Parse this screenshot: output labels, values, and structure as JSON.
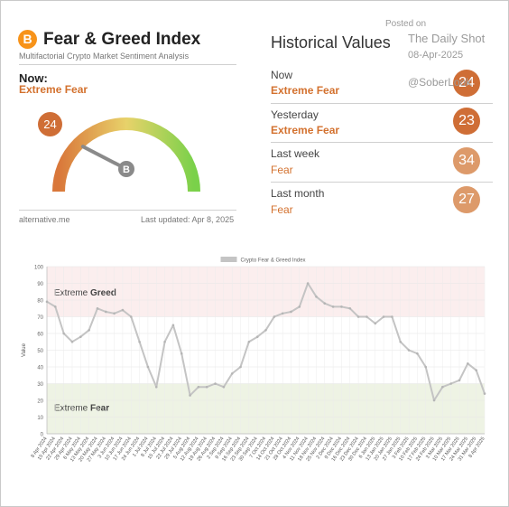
{
  "widget": {
    "logo_symbol": "B",
    "title": "Fear & Greed Index",
    "subtitle": "Multifactorial Crypto Market Sentiment Analysis",
    "now_label": "Now:",
    "now_classification": "Extreme Fear",
    "now_value": "24",
    "gauge_level_percent": 24,
    "source": "alternative.me",
    "last_updated": "Last updated: Apr 8, 2025"
  },
  "historical": {
    "title": "Historical Values",
    "items": [
      {
        "label": "Now",
        "classification": "Extreme Fear",
        "value": "24",
        "color": "#cf6e36"
      },
      {
        "label": "Yesterday",
        "classification": "Extreme Fear",
        "value": "23",
        "color": "#cf6e36"
      },
      {
        "label": "Last week",
        "classification": "Fear",
        "value": "34",
        "color": "#dd9a6a"
      },
      {
        "label": "Last month",
        "classification": "Fear",
        "value": "27",
        "color": "#dd9a6a"
      }
    ]
  },
  "watermark": {
    "posted_on": "Posted on",
    "publisher": "The Daily Shot",
    "date": "08-Apr-2025",
    "handle": "@SoberLook"
  },
  "colors": {
    "fear_orange": "#d3712e",
    "line": "#c4c4c4",
    "greed_band": "#fbeeee",
    "fear_band": "#eef3e4"
  },
  "chart_data": {
    "type": "line",
    "title": "",
    "legend": "Crypto Fear & Greed Index",
    "legend_position": "top-center",
    "ylabel": "Value",
    "xlabel": "",
    "ylim": [
      0,
      100
    ],
    "yticks": [
      0,
      10,
      20,
      30,
      40,
      50,
      60,
      70,
      80,
      90,
      100
    ],
    "grid": true,
    "bands": [
      {
        "label_prefix": "Extreme",
        "label_bold": "Greed",
        "from": 70,
        "to": 100
      },
      {
        "label_prefix": "Extreme",
        "label_bold": "Fear",
        "from": 0,
        "to": 30
      }
    ],
    "x_tick_labels": [
      "8 Apr 2024",
      "15 Apr 2024",
      "22 Apr 2024",
      "29 Apr 2024",
      "6 May 2024",
      "13 May 2024",
      "20 May 2024",
      "27 May 2024",
      "3 Jun 2024",
      "10 Jun 2024",
      "17 Jun 2024",
      "24 Jun 2024",
      "1 Jul 2024",
      "8 Jul 2024",
      "15 Jul 2024",
      "22 Jul 2024",
      "29 Jul 2024",
      "5 Aug 2024",
      "12 Aug 2024",
      "19 Aug 2024",
      "26 Aug 2024",
      "2 Sep 2024",
      "9 Sep 2024",
      "16 Sep 2024",
      "23 Sep 2024",
      "30 Sep 2024",
      "7 Oct 2024",
      "14 Oct 2024",
      "21 Oct 2024",
      "28 Oct 2024",
      "4 Nov 2024",
      "11 Nov 2024",
      "18 Nov 2024",
      "25 Nov 2024",
      "2 Dec 2024",
      "9 Dec 2024",
      "16 Dec 2024",
      "23 Dec 2024",
      "30 Dec 2024",
      "6 Jan 2025",
      "13 Jan 2025",
      "20 Jan 2025",
      "27 Jan 2025",
      "3 Feb 2025",
      "10 Feb 2025",
      "17 Feb 2025",
      "24 Feb 2025",
      "3 Mar 2025",
      "10 Mar 2025",
      "17 Mar 2025",
      "24 Mar 2025",
      "31 Mar 2025",
      "8 Apr 2025"
    ],
    "weekly_values": [
      79,
      76,
      60,
      55,
      58,
      62,
      75,
      73,
      72,
      74,
      70,
      55,
      40,
      28,
      55,
      65,
      48,
      23,
      28,
      28,
      30,
      28,
      36,
      40,
      55,
      58,
      62,
      70,
      72,
      73,
      76,
      90,
      82,
      78,
      76,
      76,
      75,
      70,
      70,
      66,
      70,
      70,
      55,
      50,
      48,
      40,
      20,
      28,
      30,
      32,
      42,
      38,
      24
    ]
  }
}
